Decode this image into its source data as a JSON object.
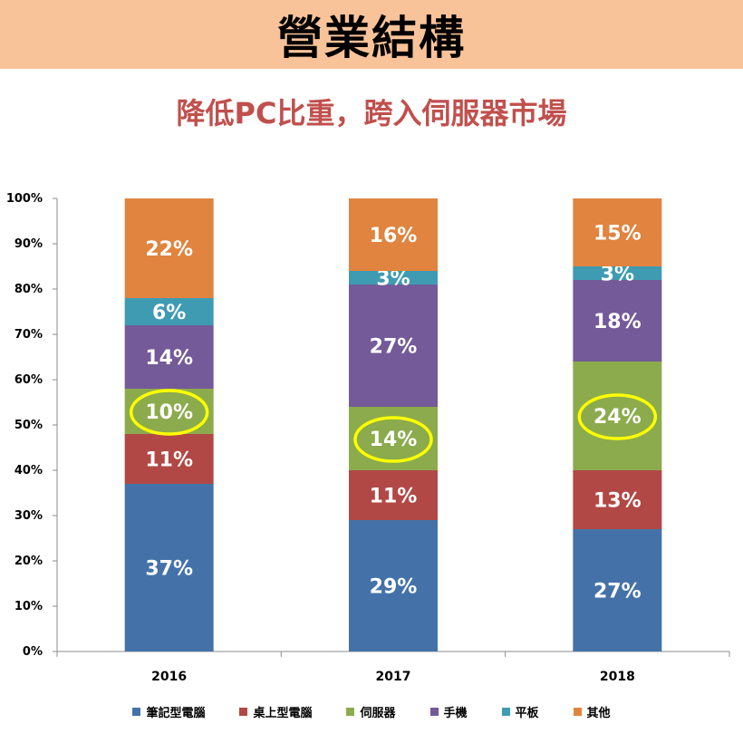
{
  "header": {
    "title": "營業結構"
  },
  "subtitle": "降低PC比重，跨入伺服器市場",
  "chart_data": {
    "type": "bar",
    "stacked": true,
    "categories": [
      "2016",
      "2017",
      "2018"
    ],
    "series": [
      {
        "name": "筆記型電腦",
        "color": "#4472a8",
        "values": [
          37,
          29,
          27
        ],
        "labels": [
          "37%",
          "29%",
          "27%"
        ]
      },
      {
        "name": "桌上型電腦",
        "color": "#b24845",
        "values": [
          11,
          11,
          13
        ],
        "labels": [
          "11%",
          "11%",
          "13%"
        ]
      },
      {
        "name": "伺服器",
        "color": "#8cab4d",
        "values": [
          10,
          14,
          24
        ],
        "labels": [
          "10%",
          "14%",
          "24%"
        ]
      },
      {
        "name": "手機",
        "color": "#745a98",
        "values": [
          14,
          27,
          18
        ],
        "labels": [
          "14%",
          "27%",
          "18%"
        ]
      },
      {
        "name": "平板",
        "color": "#3f9bb2",
        "values": [
          6,
          3,
          3
        ],
        "labels": [
          "6%",
          "3%",
          "3%"
        ]
      },
      {
        "name": "其他",
        "color": "#e0843f",
        "values": [
          22,
          16,
          15
        ],
        "labels": [
          "22%",
          "16%",
          "15%"
        ]
      }
    ],
    "ylim": [
      0,
      100
    ],
    "yticks": [
      "0%",
      "10%",
      "20%",
      "30%",
      "40%",
      "50%",
      "60%",
      "70%",
      "80%",
      "90%",
      "100%"
    ],
    "highlight_series": "伺服器",
    "highlight_color": "#ffff00",
    "legend_position": "bottom",
    "grid": false
  }
}
